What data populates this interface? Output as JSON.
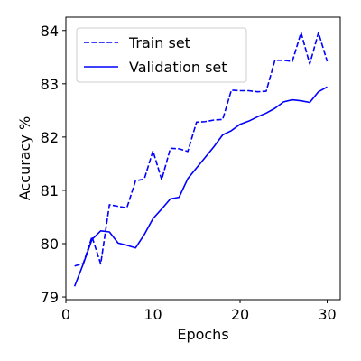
{
  "chart_data": {
    "type": "line",
    "title": "",
    "xlabel": "Epochs",
    "ylabel": "Accuracy %",
    "xlim": [
      0,
      31.5
    ],
    "ylim": [
      78.95,
      84.25
    ],
    "xticks": [
      0,
      10,
      20,
      30
    ],
    "yticks": [
      79,
      80,
      81,
      82,
      83,
      84
    ],
    "xtick_labels": [
      "0",
      "10",
      "20",
      "30"
    ],
    "ytick_labels": [
      "79",
      "80",
      "81",
      "82",
      "83",
      "84"
    ],
    "grid": false,
    "legend_position": "top-left",
    "x": [
      1,
      2,
      3,
      4,
      5,
      6,
      7,
      8,
      9,
      10,
      11,
      12,
      13,
      14,
      15,
      16,
      17,
      18,
      19,
      20,
      21,
      22,
      23,
      24,
      25,
      26,
      27,
      28,
      29,
      30
    ],
    "series": [
      {
        "name": "Train set",
        "style": "dashed",
        "color": "#0000ff",
        "values": [
          79.58,
          79.63,
          80.13,
          79.62,
          80.73,
          80.7,
          80.67,
          81.18,
          81.21,
          81.74,
          81.2,
          81.79,
          81.78,
          81.73,
          82.28,
          82.29,
          82.32,
          82.33,
          82.88,
          82.87,
          82.87,
          82.85,
          82.86,
          83.44,
          83.44,
          83.42,
          83.96,
          83.37,
          83.96,
          83.42
        ]
      },
      {
        "name": "Validation set",
        "style": "solid",
        "color": "#0000ff",
        "values": [
          79.2,
          79.62,
          80.08,
          80.24,
          80.22,
          80.01,
          79.97,
          79.92,
          80.17,
          80.47,
          80.65,
          80.84,
          80.87,
          81.22,
          81.42,
          81.62,
          81.82,
          82.04,
          82.12,
          82.24,
          82.3,
          82.38,
          82.45,
          82.54,
          82.66,
          82.7,
          82.68,
          82.65,
          82.85,
          82.94
        ]
      }
    ]
  }
}
